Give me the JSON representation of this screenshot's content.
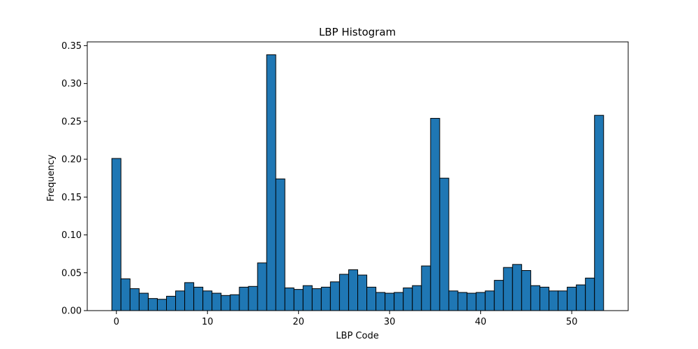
{
  "chart_data": {
    "type": "bar",
    "title": "LBP Histogram",
    "xlabel": "LBP Code",
    "ylabel": "Frequency",
    "bar_color": "#1f77b4",
    "edge_color": "#000000",
    "xlim": [
      -3.2,
      56.2
    ],
    "ylim": [
      0,
      0.355
    ],
    "x_ticks": [
      0,
      10,
      20,
      30,
      40,
      50
    ],
    "x_tick_labels": [
      "0",
      "10",
      "20",
      "30",
      "40",
      "50"
    ],
    "y_ticks": [
      0.0,
      0.05,
      0.1,
      0.15,
      0.2,
      0.25,
      0.3,
      0.35
    ],
    "y_tick_labels": [
      "0.00",
      "0.05",
      "0.10",
      "0.15",
      "0.20",
      "0.25",
      "0.30",
      "0.35"
    ],
    "grid": false,
    "x": [
      0,
      1,
      2,
      3,
      4,
      5,
      6,
      7,
      8,
      9,
      10,
      11,
      12,
      13,
      14,
      15,
      16,
      17,
      18,
      19,
      20,
      21,
      22,
      23,
      24,
      25,
      26,
      27,
      28,
      29,
      30,
      31,
      32,
      33,
      34,
      35,
      36,
      37,
      38,
      39,
      40,
      41,
      42,
      43,
      44,
      45,
      46,
      47,
      48,
      49,
      50,
      51,
      52,
      53
    ],
    "values": [
      0.201,
      0.042,
      0.029,
      0.023,
      0.016,
      0.015,
      0.019,
      0.026,
      0.037,
      0.031,
      0.026,
      0.023,
      0.02,
      0.021,
      0.031,
      0.032,
      0.063,
      0.338,
      0.174,
      0.03,
      0.028,
      0.033,
      0.029,
      0.031,
      0.038,
      0.048,
      0.054,
      0.047,
      0.031,
      0.024,
      0.023,
      0.024,
      0.03,
      0.033,
      0.059,
      0.254,
      0.175,
      0.026,
      0.024,
      0.023,
      0.024,
      0.026,
      0.04,
      0.057,
      0.061,
      0.053,
      0.033,
      0.031,
      0.026,
      0.026,
      0.031,
      0.034,
      0.043,
      0.258
    ]
  }
}
